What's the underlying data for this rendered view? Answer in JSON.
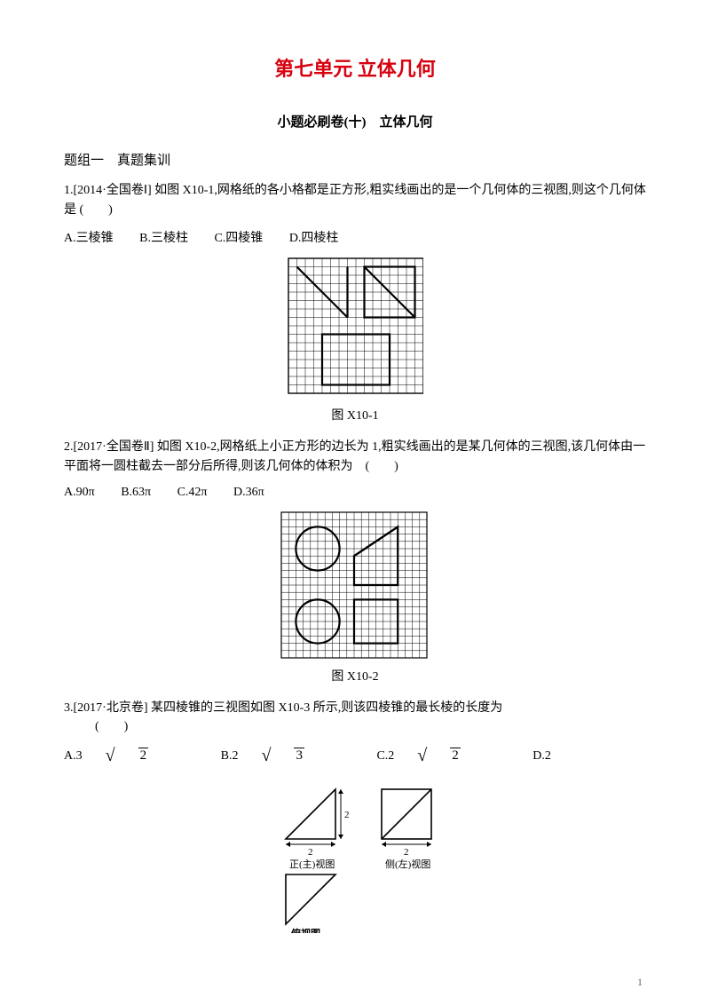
{
  "unit": {
    "title": "第七单元 立体几何",
    "title_color": "#d6000f",
    "subtitle": "小题必刷卷(十)　立体几何"
  },
  "section1": {
    "heading": "题组一　真题集训"
  },
  "q1": {
    "num": "1.",
    "src": "[2014·全国卷Ⅰ]",
    "text": " 如图 X10-1,网格纸的各小格都是正方形,粗实线画出的是一个几何体的三视图,则这个几何体是 (　　)",
    "optA": "A.三棱锥",
    "optB": "B.三棱柱",
    "optC": "C.四棱锥",
    "optD": "D.四棱柱",
    "figure_caption": "图 X10-1"
  },
  "q2": {
    "num": "2.",
    "src": "[2017·全国卷Ⅱ]",
    "text": " 如图 X10-2,网格纸上小正方形的边长为 1,粗实线画出的是某几何体的三视图,该几何体由一平面将一圆柱截去一部分后所得,则该几何体的体积为　(　　)",
    "optA": "A.90π",
    "optB": "B.63π",
    "optC": "C.42π",
    "optD": "D.36π",
    "figure_caption": "图 X10-2"
  },
  "q3": {
    "num": "3.",
    "src": "[2017·北京卷]",
    "text": " 某四棱锥的三视图如图 X10-3 所示,则该四棱锥的最长棱的长度为",
    "blank": "(　　)",
    "optA_pre": "A.3",
    "optA_rad": "2",
    "optB_pre": "B.2",
    "optB_rad": "3",
    "optC_pre": "C.2",
    "optC_rad": "2",
    "optD": "D.2",
    "view_front": "正(主)视图",
    "view_side": "侧(左)视图",
    "view_top": "俯视图",
    "dim2_v": "2",
    "dim2_h": "2"
  },
  "page_number": "1",
  "style": {
    "grid_stroke": "#000000",
    "thick_stroke": "#000000",
    "thin_w": 0.5,
    "thick_w": 2.2,
    "fig_stroke": "#000000"
  }
}
